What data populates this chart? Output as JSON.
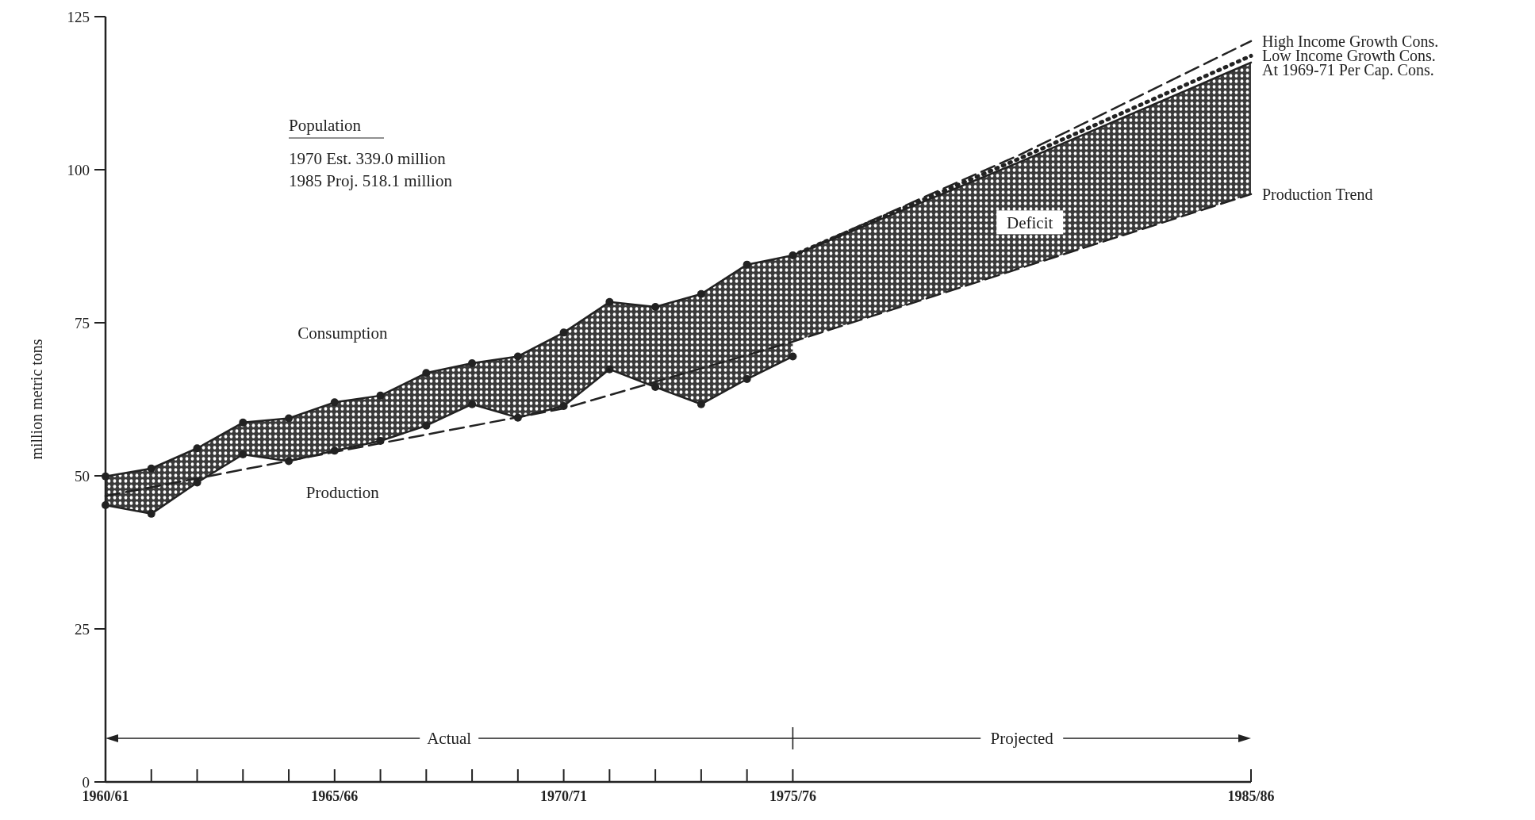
{
  "chart_data": {
    "type": "line",
    "ylabel": "million metric tons",
    "ylim": [
      0,
      125
    ],
    "yticks": [
      0,
      25,
      50,
      75,
      100,
      125
    ],
    "categories": [
      "1960/61",
      null,
      null,
      null,
      null,
      "1965/66",
      null,
      null,
      null,
      null,
      "1970/71",
      null,
      null,
      null,
      null,
      "1975/76",
      null,
      null,
      null,
      null,
      null,
      null,
      null,
      null,
      null,
      "1985/86"
    ],
    "grid": false,
    "series": [
      {
        "name": "Consumption",
        "color": "#222222",
        "marker": "circle",
        "line_style": "solid",
        "values": [
          49.9,
          51.2,
          54.5,
          58.7,
          59.4,
          62,
          63.1,
          66.8,
          68.4,
          69.5,
          73.4,
          78.4,
          77.6,
          79.7,
          84.5,
          86,
          null,
          null,
          null,
          null,
          null,
          null,
          null,
          null,
          null,
          null
        ]
      },
      {
        "name": "Production",
        "color": "#222222",
        "marker": "circle",
        "line_style": "solid",
        "values": [
          45.2,
          43.8,
          48.9,
          53.5,
          52.4,
          54.1,
          55.7,
          58.2,
          61.7,
          59.5,
          61.4,
          67.4,
          64.5,
          61.7,
          65.8,
          69.5,
          null,
          null,
          null,
          null,
          null,
          null,
          null,
          null,
          null,
          null
        ]
      },
      {
        "name": "Production Trend",
        "color": "#222222",
        "marker": "none",
        "line_style": "dashed",
        "values": [
          46.7,
          null,
          null,
          null,
          null,
          53.9,
          null,
          null,
          null,
          null,
          61,
          null,
          null,
          null,
          null,
          71.9,
          null,
          null,
          null,
          null,
          84,
          null,
          null,
          null,
          null,
          96
        ]
      },
      {
        "name": "At 1969-71 Per Cap. Cons.",
        "color": "#222222",
        "marker": "none",
        "line_style": "solid",
        "values": [
          null,
          null,
          null,
          null,
          null,
          null,
          null,
          null,
          null,
          null,
          null,
          null,
          null,
          null,
          null,
          86,
          null,
          null,
          null,
          null,
          101.4,
          null,
          null,
          null,
          null,
          117.5
        ]
      },
      {
        "name": "Low Income Growth Cons.",
        "color": "#222222",
        "marker": "none",
        "line_style": "dotted",
        "values": [
          null,
          null,
          null,
          null,
          null,
          null,
          null,
          null,
          null,
          null,
          null,
          null,
          null,
          null,
          null,
          86,
          null,
          null,
          null,
          null,
          102,
          null,
          null,
          null,
          null,
          118.6
        ]
      },
      {
        "name": "High Income Growth Cons.",
        "color": "#222222",
        "marker": "none",
        "line_style": "dashed",
        "values": [
          null,
          null,
          null,
          null,
          null,
          null,
          null,
          null,
          null,
          null,
          null,
          null,
          null,
          null,
          null,
          86,
          null,
          null,
          null,
          null,
          102.6,
          null,
          null,
          null,
          null,
          121
        ]
      }
    ],
    "annotations": [
      "Population",
      "1970 Est. 339.0 million",
      "1985 Proj. 518.1 million",
      "Deficit",
      "Actual",
      "Projected"
    ]
  }
}
